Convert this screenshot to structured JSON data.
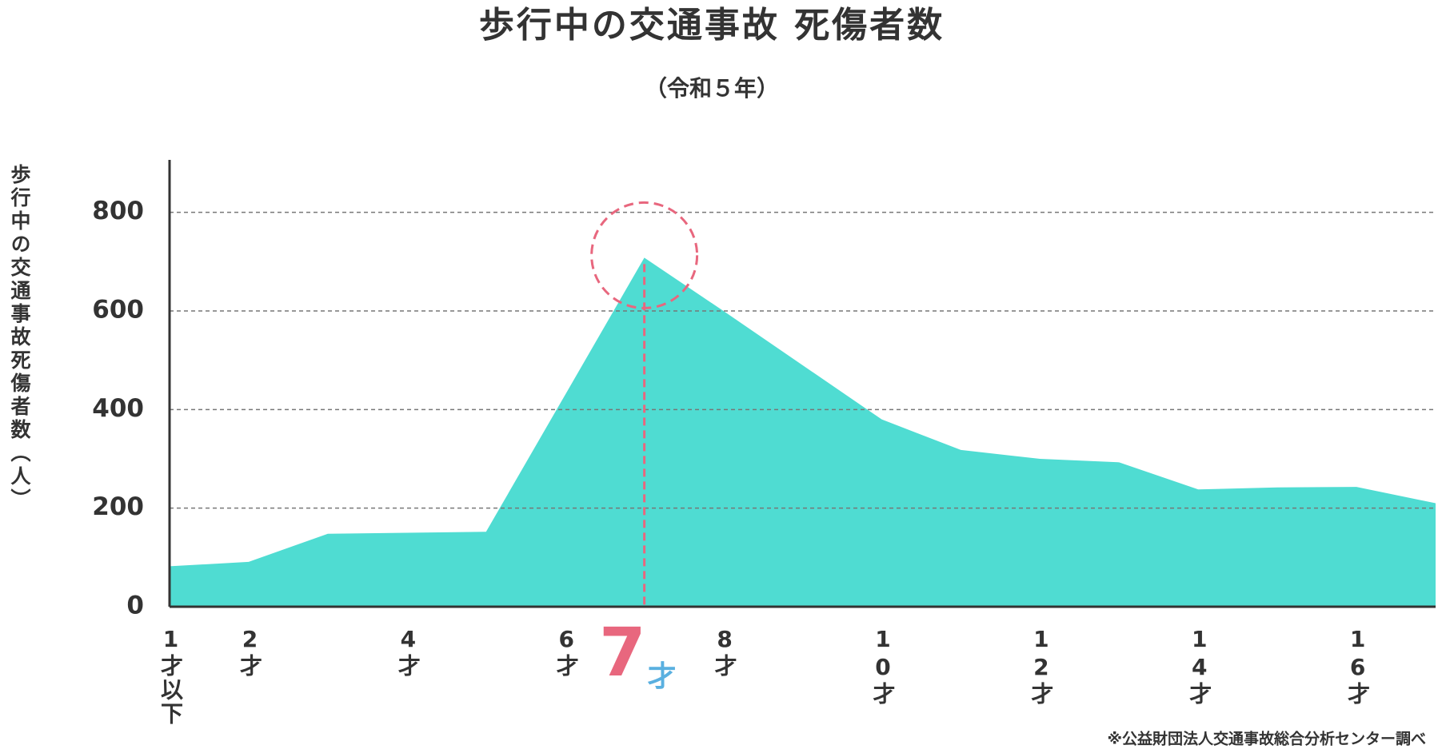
{
  "chart_data": {
    "type": "area",
    "title": "歩行中の交通事故 死傷者数",
    "subtitle": "（令和５年）",
    "ylabel": "歩行中の交通事故死傷者数（人）",
    "source": "※公益財団法人交通事故総合分析センター調べ",
    "x": [
      1,
      2,
      3,
      4,
      5,
      6,
      7,
      8,
      9,
      10,
      11,
      12,
      13,
      14,
      15,
      16,
      17
    ],
    "values": [
      82,
      91,
      148,
      150,
      152,
      430,
      708,
      600,
      490,
      380,
      318,
      300,
      293,
      238,
      242,
      243,
      210
    ],
    "color": "#4fdcd2",
    "xlim": [
      1,
      17
    ],
    "xticks": [
      {
        "value": 1,
        "label": "1才以下"
      },
      {
        "value": 2,
        "label": "2才"
      },
      {
        "value": 4,
        "label": "4才"
      },
      {
        "value": 6,
        "label": "6才"
      },
      {
        "value": 8,
        "label": "8才"
      },
      {
        "value": 10,
        "label": "10才"
      },
      {
        "value": 12,
        "label": "12才"
      },
      {
        "value": 14,
        "label": "14才"
      },
      {
        "value": 16,
        "label": "16才"
      }
    ],
    "ylim": [
      0,
      900
    ],
    "yticks": [
      0,
      200,
      400,
      600,
      800
    ],
    "grid": true,
    "highlight": {
      "x": 7,
      "unit": "才",
      "color": "#e8677e",
      "unit_color": "#5ab0e0"
    }
  }
}
